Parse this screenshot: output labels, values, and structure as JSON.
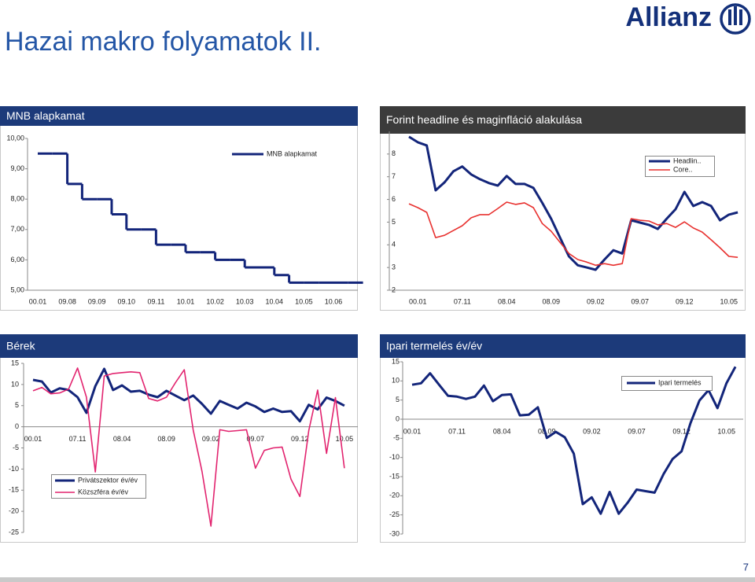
{
  "title": "Hazai makro folyamatok II.",
  "logo": "Allianz",
  "page_number": "7",
  "chart_data": [
    {
      "type": "line",
      "step": true,
      "title": "MNB alapkamat",
      "categories": [
        "00.01",
        null,
        "09.08",
        null,
        "09.09",
        null,
        "09.10",
        null,
        "09.11",
        null,
        "10.01",
        null,
        "10.02",
        null,
        "10.03",
        null,
        "10.04",
        null,
        "10.05",
        null,
        "10.06",
        null
      ],
      "series": [
        {
          "name": "MNB alapkamat",
          "color": "#13257a",
          "values": [
            9.5,
            9.5,
            8.5,
            8,
            8,
            7.5,
            7,
            7,
            6.5,
            6.5,
            6.25,
            6.25,
            6,
            6,
            5.75,
            5.75,
            5.5,
            5.25,
            5.25,
            5.25,
            5.25,
            5.25
          ]
        }
      ],
      "ylim": [
        5,
        10
      ],
      "yticks": [
        {
          "value": 5,
          "label": "5,00"
        },
        {
          "value": 6,
          "label": "6,00"
        },
        {
          "value": 7,
          "label": "7,00"
        },
        {
          "value": 8,
          "label": "8,00"
        },
        {
          "value": 9,
          "label": "9,00"
        },
        {
          "value": 10,
          "label": "10,00"
        }
      ],
      "grid": false
    },
    {
      "type": "line",
      "title": "Forint headline és maginfláció alakulása",
      "categories": [
        null,
        "00.01",
        null,
        null,
        null,
        null,
        "07.11",
        null,
        null,
        null,
        null,
        "08.04",
        null,
        null,
        null,
        null,
        "08.09",
        null,
        null,
        null,
        null,
        "09.02",
        null,
        null,
        null,
        null,
        "09.07",
        null,
        null,
        null,
        null,
        "09.12",
        null,
        null,
        null,
        null,
        "10.05",
        null
      ],
      "series": [
        {
          "name": "Headlin..",
          "color": "#13257a",
          "values": [
            8.76,
            8.52,
            8.38,
            6.4,
            6.75,
            7.24,
            7.45,
            7.1,
            6.89,
            6.72,
            6.61,
            7.03,
            6.68,
            6.68,
            6.51,
            5.85,
            5.15,
            4.32,
            3.49,
            3.1,
            3.0,
            2.9,
            3.35,
            3.76,
            3.62,
            5.08,
            4.98,
            4.88,
            4.7,
            5.15,
            5.57,
            6.33,
            5.71,
            5.88,
            5.71,
            5.08,
            5.33,
            5.43
          ]
        },
        {
          "name": "Core..",
          "color": "#e8312f",
          "values": [
            5.81,
            5.64,
            5.43,
            4.32,
            4.42,
            4.63,
            4.84,
            5.19,
            5.33,
            5.33,
            5.6,
            5.88,
            5.78,
            5.85,
            5.64,
            4.94,
            4.6,
            4.11,
            3.62,
            3.35,
            3.24,
            3.1,
            3.17,
            3.1,
            3.17,
            5.15,
            5.08,
            5.05,
            4.88,
            4.94,
            4.77,
            5.01,
            4.74,
            4.56,
            4.22,
            3.87,
            3.49,
            3.45
          ]
        }
      ],
      "ylim": [
        2,
        9
      ],
      "yticks": [
        2,
        3,
        4,
        5,
        6,
        7,
        8
      ],
      "grid": false
    },
    {
      "type": "line",
      "title": "Bérek",
      "categories": [
        "00.01",
        null,
        null,
        null,
        null,
        "07.11",
        null,
        null,
        null,
        null,
        "08.04",
        null,
        null,
        null,
        null,
        "08.09",
        null,
        null,
        null,
        null,
        "09.02",
        null,
        null,
        null,
        null,
        "09.07",
        null,
        null,
        null,
        null,
        "09.12",
        null,
        null,
        null,
        null,
        "10.05"
      ],
      "series": [
        {
          "name": "Privátszektor év/év",
          "color": "#13257a",
          "values": [
            11.1,
            10.7,
            8.1,
            9.1,
            8.7,
            7.0,
            3.3,
            9.6,
            13.7,
            8.7,
            9.8,
            8.3,
            8.5,
            7.6,
            7.0,
            8.5,
            7.4,
            6.3,
            7.4,
            5.4,
            3.1,
            6.1,
            5.2,
            4.3,
            5.7,
            4.8,
            3.5,
            4.3,
            3.5,
            3.7,
            1.3,
            5.2,
            4.1,
            6.9,
            6.1,
            5.0
          ]
        },
        {
          "name": "Közszféra év/év",
          "color": "#e2246f",
          "values": [
            8.5,
            9.3,
            7.8,
            8.0,
            8.9,
            13.9,
            7.0,
            -10.7,
            12.0,
            12.6,
            12.8,
            13.0,
            12.8,
            6.7,
            6.1,
            7.0,
            10.4,
            13.5,
            -0.7,
            -10.6,
            -23.5,
            -0.7,
            -1.1,
            -0.9,
            -0.7,
            -9.8,
            -5.6,
            -5.0,
            -4.8,
            -12.4,
            -16.5,
            -0.9,
            8.7,
            -6.3,
            6.9,
            -9.8
          ]
        }
      ],
      "ylim": [
        -25,
        15
      ],
      "yticks": [
        -25,
        -20,
        -15,
        -10,
        -5,
        0,
        5,
        10,
        15
      ],
      "grid": false
    },
    {
      "type": "line",
      "title": "Ipari termelés év/év",
      "categories": [
        "00.01",
        null,
        null,
        null,
        null,
        "07.11",
        null,
        null,
        null,
        null,
        "08.04",
        null,
        null,
        null,
        null,
        "08.09",
        null,
        null,
        null,
        null,
        "09.02",
        null,
        null,
        null,
        null,
        "09.07",
        null,
        null,
        null,
        null,
        "09.12",
        null,
        null,
        null,
        null,
        "10.05",
        null
      ],
      "series": [
        {
          "name": "Ipari termelés",
          "color": "#13257a",
          "values": [
            9.0,
            9.4,
            12.0,
            9.0,
            6.1,
            5.9,
            5.3,
            5.9,
            8.8,
            4.7,
            6.3,
            6.5,
            1.0,
            1.2,
            3.1,
            -4.9,
            -3.3,
            -4.7,
            -9.0,
            -22.2,
            -20.4,
            -24.7,
            -19.0,
            -24.7,
            -21.8,
            -18.4,
            -18.8,
            -19.2,
            -14.3,
            -10.4,
            -8.4,
            -1.0,
            4.9,
            7.6,
            2.9,
            9.4,
            13.7
          ]
        }
      ],
      "ylim": [
        -30,
        15
      ],
      "yticks": [
        -30,
        -25,
        -20,
        -15,
        -10,
        -5,
        0,
        5,
        10,
        15
      ],
      "grid": false
    }
  ]
}
